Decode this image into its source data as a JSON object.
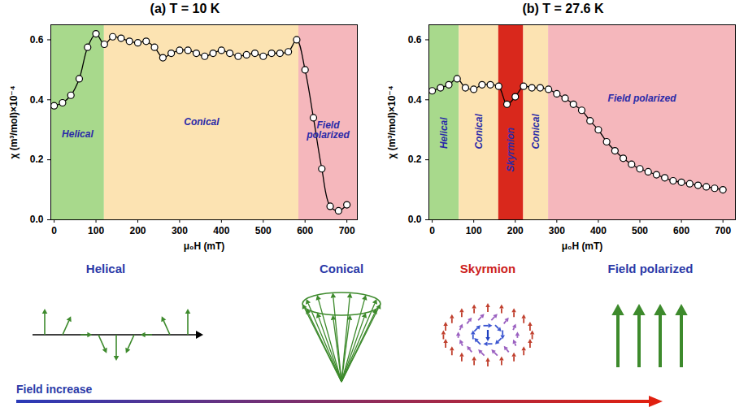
{
  "chart_data": [
    {
      "type": "line",
      "title": "(a) T = 10 K",
      "x_label": "μ₀H (mT)",
      "y_label": "χ (m³/mol)×10⁻⁴",
      "x": [
        0,
        20,
        40,
        60,
        80,
        100,
        120,
        140,
        160,
        180,
        200,
        220,
        240,
        260,
        280,
        300,
        320,
        340,
        360,
        380,
        400,
        420,
        440,
        460,
        480,
        500,
        520,
        540,
        560,
        580,
        600,
        620,
        640,
        660,
        680,
        700
      ],
      "values": [
        0.38,
        0.39,
        0.415,
        0.47,
        0.575,
        0.62,
        0.585,
        0.61,
        0.605,
        0.595,
        0.59,
        0.595,
        0.575,
        0.54,
        0.555,
        0.565,
        0.565,
        0.555,
        0.545,
        0.555,
        0.565,
        0.555,
        0.545,
        0.55,
        0.555,
        0.545,
        0.555,
        0.555,
        0.56,
        0.6,
        0.5,
        0.34,
        0.17,
        0.045,
        0.03,
        0.05
      ],
      "color": "#000000",
      "marker": "circle",
      "line_style": "solid",
      "xlim": [
        -8,
        725
      ],
      "xticks": [
        0,
        100,
        200,
        300,
        400,
        500,
        600,
        700
      ],
      "ylim": [
        0,
        0.65
      ],
      "yticks": [
        {
          "value": 0,
          "label": "0.0"
        },
        0.2,
        0.4,
        0.6
      ],
      "regions": [
        {
          "label": "Helical",
          "from": -8,
          "to": 120,
          "color": "#a8d98c"
        },
        {
          "label": "Conical",
          "from": 120,
          "to": 585,
          "color": "#fce3b2"
        },
        {
          "label": "Field polarized",
          "from": 585,
          "to": 725,
          "color": "#f5b7bc"
        }
      ]
    },
    {
      "type": "line",
      "title": "(b) T = 27.6 K",
      "x_label": "μ₀H (mT)",
      "y_label": "χ (m³/mol)×10⁻⁴",
      "x": [
        0,
        20,
        40,
        60,
        80,
        100,
        120,
        140,
        160,
        180,
        200,
        220,
        240,
        260,
        280,
        300,
        320,
        340,
        360,
        380,
        400,
        420,
        440,
        460,
        480,
        500,
        520,
        540,
        560,
        580,
        600,
        620,
        640,
        660,
        680,
        700
      ],
      "values": [
        0.43,
        0.44,
        0.45,
        0.47,
        0.44,
        0.435,
        0.45,
        0.45,
        0.445,
        0.385,
        0.41,
        0.445,
        0.44,
        0.44,
        0.435,
        0.42,
        0.405,
        0.385,
        0.365,
        0.33,
        0.3,
        0.26,
        0.23,
        0.205,
        0.185,
        0.17,
        0.16,
        0.15,
        0.14,
        0.13,
        0.125,
        0.12,
        0.115,
        0.11,
        0.105,
        0.1
      ],
      "color": "#000000",
      "marker": "circle",
      "line_style": "solid",
      "xlim": [
        -8,
        730
      ],
      "xticks": [
        0,
        100,
        200,
        300,
        400,
        500,
        600,
        700
      ],
      "ylim": [
        0,
        0.65
      ],
      "yticks": [
        {
          "value": 0,
          "label": "0.0"
        },
        0.2,
        0.4,
        0.6
      ],
      "regions": [
        {
          "label": "Helical",
          "from": -8,
          "to": 65,
          "color": "#a8d98c"
        },
        {
          "label": "Conical",
          "from": 65,
          "to": 160,
          "color": "#fce3b2"
        },
        {
          "label": "Skyrmion",
          "from": 160,
          "to": 220,
          "color": "#d9281c"
        },
        {
          "label": "Conical",
          "from": 220,
          "to": 280,
          "color": "#fce3b2"
        },
        {
          "label": "Field polarized",
          "from": 280,
          "to": 730,
          "color": "#f5b7bc"
        }
      ]
    }
  ],
  "diagram": {
    "states": [
      "Helical",
      "Conical",
      "Skyrmion",
      "Field polarized"
    ],
    "arrow_label": "Field increase"
  }
}
